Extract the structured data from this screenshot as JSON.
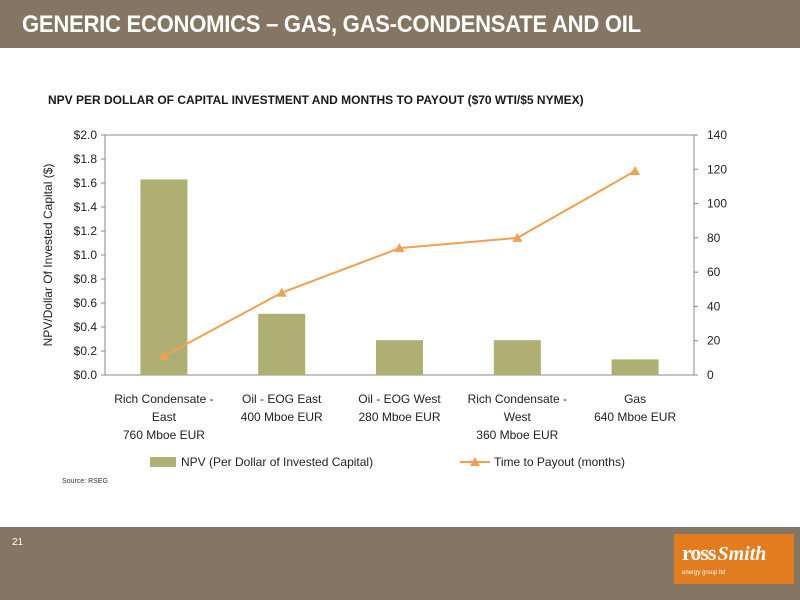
{
  "header": {
    "title": "GENERIC ECONOMICS – GAS, GAS-CONDENSATE AND OIL"
  },
  "chart_data": {
    "type": "bar",
    "title": "NPV PER  DOLLAR OF CAPITAL INVESTMENT AND MONTHS TO PAYOUT ($70 WTI/$5 NYMEX)",
    "categories": [
      [
        "Rich Condensate -",
        "East",
        "760 Mboe EUR"
      ],
      [
        "Oil - EOG East",
        "400 Mboe EUR"
      ],
      [
        "Oil - EOG West",
        "280 Mboe EUR"
      ],
      [
        "Rich Condensate -",
        "West",
        "360 Mboe EUR"
      ],
      [
        "Gas",
        "640 Mboe EUR"
      ]
    ],
    "series": [
      {
        "name": "NPV (Per Dollar of  Invested Capital)",
        "type": "bar",
        "axis": "left",
        "values": [
          1.63,
          0.51,
          0.29,
          0.29,
          0.13
        ]
      },
      {
        "name": "Time to Payout (months)",
        "type": "line",
        "axis": "right",
        "values": [
          11,
          48,
          74,
          80,
          119
        ]
      }
    ],
    "ylabel": "NPV/Dollar Of Invested Capital ($)",
    "ylim": [
      0,
      2.0
    ],
    "yticks": [
      "$0.0",
      "$0.2",
      "$0.4",
      "$0.6",
      "$0.8",
      "$1.0",
      "$1.2",
      "$1.4",
      "$1.6",
      "$1.8",
      "$2.0"
    ],
    "y2lim": [
      0,
      140
    ],
    "y2ticks": [
      "0",
      "20",
      "40",
      "60",
      "80",
      "100",
      "120",
      "140"
    ],
    "legend": "bottom",
    "grid": false,
    "colors": {
      "bar": "#afaf73",
      "line": "#f0a050"
    }
  },
  "source": "Source: RSEG",
  "footer": {
    "page_number": "21",
    "logo": {
      "brand_a": "ross",
      "brand_b": "Smith",
      "tagline": "energy group ltd"
    }
  }
}
